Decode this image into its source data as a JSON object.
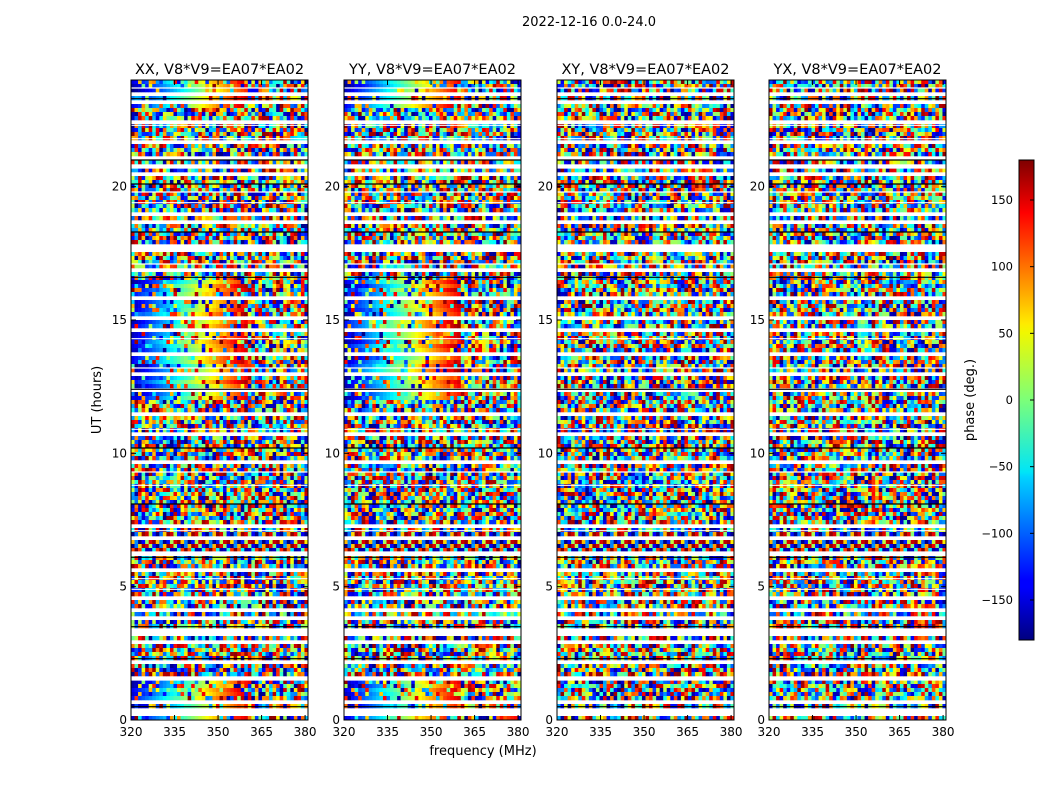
{
  "chart_data": {
    "type": "heatmap",
    "suptitle": "2022-12-16 0.0-24.0",
    "xlabel": "frequency (MHz)",
    "ylabel": "UT (hours)",
    "xlim": [
      320,
      381
    ],
    "ylim": [
      0,
      24
    ],
    "xticks": [
      "320",
      "335",
      "350",
      "365",
      "380"
    ],
    "xtick_values": [
      320,
      335,
      350,
      365,
      380
    ],
    "yticks": [
      "0",
      "5",
      "10",
      "15",
      "20"
    ],
    "ytick_values": [
      0,
      5,
      10,
      15,
      20
    ],
    "colormap": "jet",
    "colorbar": {
      "label": "phase (deg.)",
      "range": [
        -180,
        180
      ],
      "ticks": [
        "150",
        "100",
        "50",
        "0",
        "−50",
        "−100",
        "−150"
      ],
      "tick_values": [
        150,
        100,
        50,
        0,
        -50,
        -100,
        -150
      ]
    },
    "panels": [
      {
        "title": "XX, V8*V9=EA07*EA02",
        "polarization": "XX"
      },
      {
        "title": "YY, V8*V9=EA07*EA02",
        "polarization": "YY"
      },
      {
        "title": "XY, V8*V9=EA07*EA02",
        "polarization": "XY"
      },
      {
        "title": "YX, V8*V9=EA07*EA02",
        "polarization": "YX"
      }
    ],
    "flagged_rows_hours": [
      0.5,
      0.7,
      1.5,
      2.3,
      2.9,
      3.2,
      3.5,
      4.9,
      5.3,
      6.1,
      6.3,
      7.1,
      8.1,
      8.8,
      9.3,
      10.2,
      10.9,
      11.5,
      12.4,
      13.2,
      14.3,
      16.6,
      17.1,
      17.7,
      18.3,
      19.4,
      19.8,
      20.1,
      20.5,
      20.7,
      21.0,
      21.8,
      22.3,
      23.3,
      23.5,
      23.7
    ]
  }
}
